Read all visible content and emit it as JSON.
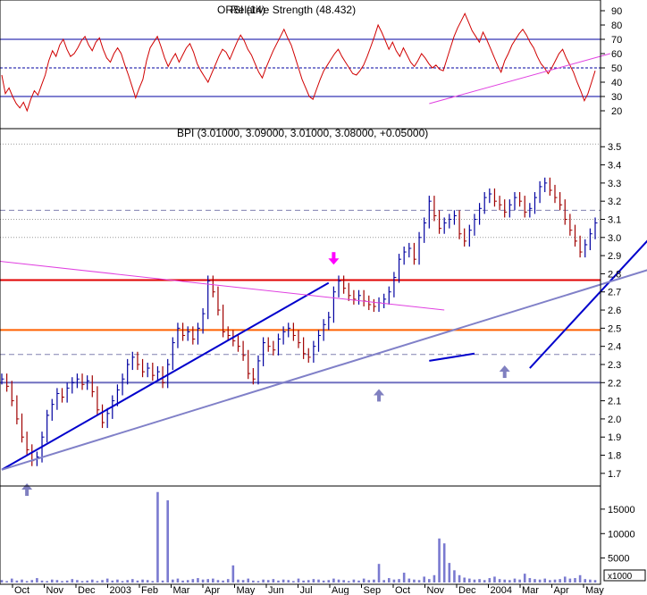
{
  "chart_data": [
    {
      "type": "line",
      "panel": "rsi",
      "title": "ORSI (14)",
      "overlay_text": "Relative Strength (48.432)",
      "ylim": [
        10,
        95
      ],
      "y_ticks": [
        20,
        30,
        40,
        50,
        60,
        70,
        80,
        90
      ],
      "reference_lines": [
        70,
        50,
        30
      ],
      "series": [
        {
          "values": [
            45,
            32,
            36,
            30,
            25,
            22,
            26,
            20,
            28,
            34,
            31,
            38,
            45,
            55,
            62,
            58,
            66,
            70,
            63,
            58,
            60,
            64,
            69,
            72,
            66,
            62,
            68,
            71,
            63,
            57,
            54,
            60,
            64,
            60,
            52,
            45,
            37,
            29,
            36,
            42,
            55,
            64,
            68,
            72,
            65,
            57,
            51,
            56,
            60,
            54,
            59,
            64,
            67,
            61,
            53,
            48,
            44,
            40,
            46,
            52,
            58,
            63,
            61,
            56,
            62,
            68,
            73,
            69,
            63,
            59,
            53,
            47,
            43,
            50,
            56,
            62,
            67,
            72,
            77,
            71,
            66,
            58,
            50,
            42,
            36,
            30,
            28,
            35,
            42,
            48,
            52,
            56,
            60,
            63,
            58,
            54,
            50,
            46,
            45,
            48,
            52,
            58,
            65,
            72,
            80,
            75,
            69,
            63,
            68,
            62,
            58,
            64,
            59,
            54,
            51,
            55,
            60,
            57,
            53,
            50,
            52,
            49,
            48,
            56,
            64,
            72,
            78,
            83,
            88,
            82,
            76,
            72,
            68,
            75,
            70,
            64,
            58,
            52,
            47,
            55,
            60,
            66,
            70,
            74,
            77,
            73,
            68,
            64,
            58,
            53,
            50,
            46,
            50,
            55,
            60,
            63,
            57,
            52,
            47,
            40,
            34,
            27,
            32,
            40,
            48
          ]
        }
      ],
      "trend_lines": [
        {
          "points": [
            [
              85,
              25
            ],
            [
              121,
              60
            ]
          ]
        }
      ]
    },
    {
      "type": "line",
      "panel": "price",
      "title": "BPI (3.01000, 3.09000, 3.01000, 3.08000, +0.05000)",
      "x_ticks": [
        "Oct",
        "Nov",
        "Dec",
        "2003",
        "Feb",
        "Mar",
        "Apr",
        "May",
        "Jun",
        "Jul",
        "Aug",
        "Sep",
        "Oct",
        "Nov",
        "Dec",
        "2004",
        "Mar",
        "Apr",
        "May"
      ],
      "ylim": [
        1.65,
        3.58
      ],
      "y_ticks": [
        1.7,
        1.8,
        1.9,
        2.0,
        2.1,
        2.2,
        2.3,
        2.4,
        2.5,
        2.6,
        2.7,
        2.8,
        2.9,
        3.0,
        3.1,
        3.2,
        3.3,
        3.4,
        3.5
      ],
      "series": [
        {
          "name": "BPI",
          "values": [
            2.22,
            2.18,
            2.1,
            2.0,
            1.9,
            1.83,
            1.77,
            1.79,
            1.9,
            2.02,
            2.08,
            2.14,
            2.12,
            2.17,
            2.2,
            2.22,
            2.19,
            2.21,
            2.15,
            2.05,
            1.98,
            2.03,
            2.1,
            2.16,
            2.22,
            2.3,
            2.34,
            2.3,
            2.26,
            2.28,
            2.24,
            2.26,
            2.2,
            2.3,
            2.42,
            2.5,
            2.46,
            2.48,
            2.44,
            2.5,
            2.58,
            2.76,
            2.7,
            2.6,
            2.48,
            2.46,
            2.43,
            2.4,
            2.35,
            2.25,
            2.22,
            2.32,
            2.42,
            2.4,
            2.38,
            2.44,
            2.48,
            2.5,
            2.46,
            2.42,
            2.36,
            2.34,
            2.4,
            2.46,
            2.52,
            2.56,
            2.7,
            2.76,
            2.72,
            2.68,
            2.66,
            2.68,
            2.65,
            2.63,
            2.62,
            2.64,
            2.66,
            2.7,
            2.78,
            2.88,
            2.92,
            2.94,
            2.88,
            3.0,
            3.08,
            3.2,
            3.12,
            3.05,
            3.08,
            3.1,
            3.12,
            3.02,
            2.98,
            3.04,
            3.1,
            3.16,
            3.22,
            3.24,
            3.2,
            3.18,
            3.14,
            3.18,
            3.22,
            3.2,
            3.14,
            3.16,
            3.22,
            3.28,
            3.3,
            3.26,
            3.22,
            3.18,
            3.1,
            3.04,
            2.98,
            2.92,
            2.96,
            3.02,
            3.08
          ]
        }
      ],
      "horizontal_lines": [
        {
          "value": 3.515,
          "color": "#9a9a9a",
          "style": "dotted"
        },
        {
          "value": 3.15,
          "color": "#8080b0",
          "style": "dashed"
        },
        {
          "value": 3.1,
          "color": "#9a9a9a",
          "style": "dotted"
        },
        {
          "value": 3.0,
          "color": "#9a9a9a",
          "style": "dotted"
        },
        {
          "value": 2.765,
          "color": "#e00000",
          "style": "solid"
        },
        {
          "value": 2.49,
          "color": "#ff6000",
          "style": "solid"
        },
        {
          "value": 2.355,
          "color": "#8080b0",
          "style": "dashed"
        },
        {
          "value": 2.2,
          "color": "#7070c0",
          "style": "solid"
        }
      ],
      "trend_lines": [
        {
          "color": "#0000cc",
          "points": [
            [
              0,
              1.72
            ],
            [
              65,
              2.75
            ]
          ]
        },
        {
          "color": "#0000cc",
          "points": [
            [
              85,
              2.32
            ],
            [
              94,
              2.36
            ]
          ]
        },
        {
          "color": "#0000cc",
          "points": [
            [
              105,
              2.28
            ],
            [
              140,
              3.33
            ]
          ]
        },
        {
          "color": "#8080c8",
          "points": [
            [
              0,
              1.72
            ],
            [
              140,
              2.92
            ]
          ]
        },
        {
          "color": "#e040e0",
          "points": [
            [
              -70,
              3.08
            ],
            [
              88,
              2.6
            ]
          ]
        }
      ],
      "arrows": [
        {
          "x": 66,
          "value": 2.87,
          "color": "#ff00ff",
          "direction": "down"
        },
        {
          "x": 5,
          "value": 1.63,
          "color": "#8080c0",
          "direction": "up"
        },
        {
          "x": 75,
          "value": 2.15,
          "color": "#8080c0",
          "direction": "up"
        },
        {
          "x": 100,
          "value": 2.28,
          "color": "#8080c0",
          "direction": "up"
        },
        {
          "x": 138,
          "value": 2.82,
          "color": "#8080c0",
          "direction": "up"
        }
      ]
    },
    {
      "type": "bar",
      "panel": "volume",
      "ylim": [
        0,
        19000
      ],
      "y_ticks": [
        5000,
        10000,
        15000
      ],
      "unit_label": "x1000",
      "series": [
        {
          "name": "Volume",
          "values": [
            500,
            300,
            800,
            400,
            600,
            300,
            500,
            900,
            400,
            300,
            600,
            500,
            300,
            400,
            700,
            500,
            300,
            400,
            600,
            300,
            500,
            800,
            400,
            600,
            300,
            500,
            700,
            400,
            600,
            500,
            300,
            18500,
            400,
            16800,
            600,
            800,
            400,
            500,
            700,
            900,
            600,
            700,
            800,
            500,
            400,
            700,
            3500,
            600,
            500,
            800,
            400,
            300,
            600,
            500,
            700,
            400,
            600,
            500,
            300,
            800,
            400,
            500,
            700,
            600,
            400,
            500,
            800,
            600,
            500,
            300,
            600,
            400,
            800,
            500,
            600,
            3800,
            500,
            900,
            600,
            700,
            2000,
            800,
            600,
            500,
            1200,
            700,
            1500,
            9000,
            8000,
            4000,
            2500,
            1500,
            1000,
            800,
            600,
            700,
            500,
            900,
            1200,
            700,
            600,
            500,
            800,
            600,
            1800,
            900,
            700,
            600,
            800,
            500,
            600,
            700,
            1200,
            800,
            900,
            1500,
            700,
            600,
            500
          ]
        }
      ]
    }
  ]
}
